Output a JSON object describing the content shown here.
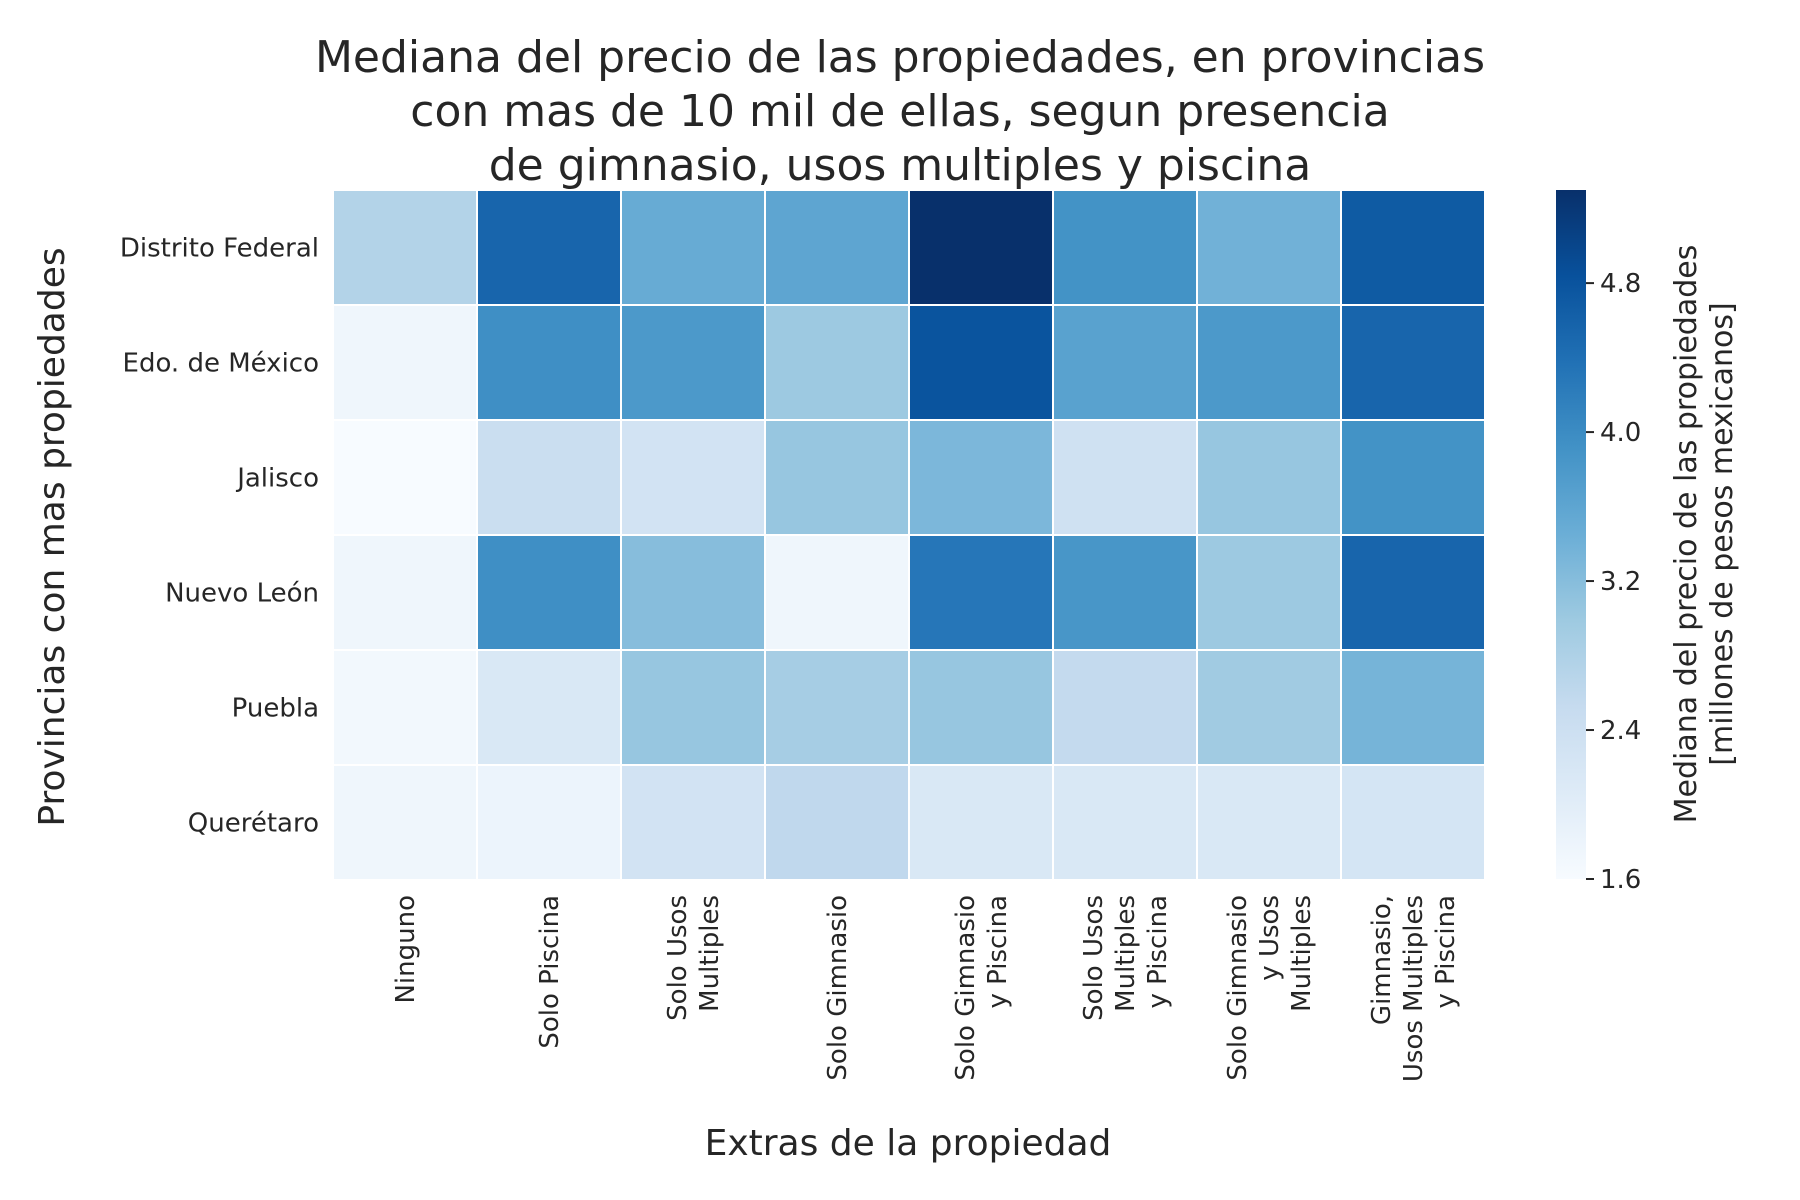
{
  "chart_data": {
    "type": "heatmap",
    "title_lines": [
      "Mediana del precio de las propiedades, en provincias",
      "con mas de 10 mil de ellas, segun presencia",
      "de gimnasio, usos multiples y piscina"
    ],
    "xlabel": "Extras de la propiedad",
    "ylabel": "Provincias con mas propiedades",
    "colorbar_label_lines": [
      "Mediana del precio de las propiedades",
      "[millones de pesos mexicanos]"
    ],
    "colormap": "Blues",
    "colormap_colors": [
      "#f7fbff",
      "#deebf7",
      "#c6dbef",
      "#9ecae1",
      "#6baed6",
      "#4292c6",
      "#2171b5",
      "#08519c",
      "#08306b"
    ],
    "vmin": 1.6,
    "vmax": 5.3,
    "colorbar_ticks": [
      "1.6",
      "2.4",
      "3.2",
      "4.0",
      "4.8"
    ],
    "x_categories": [
      [
        "Ninguno"
      ],
      [
        "Solo Piscina"
      ],
      [
        "Solo Usos",
        "Multiples"
      ],
      [
        "Solo Gimnasio"
      ],
      [
        "Solo Gimnasio",
        "y Piscina"
      ],
      [
        "Solo Usos",
        "Multiples",
        "y Piscina"
      ],
      [
        "Solo Gimnasio",
        "y Usos",
        "Multiples"
      ],
      [
        "Gimnasio,",
        "Usos Multiples",
        "y Piscina"
      ]
    ],
    "y_categories": [
      "Distrito Federal",
      "Edo. de México",
      "Jalisco",
      "Nuevo León",
      "Puebla",
      "Querétaro"
    ],
    "values": [
      [
        2.75,
        4.55,
        3.5,
        3.6,
        5.3,
        3.9,
        3.4,
        4.7
      ],
      [
        1.75,
        3.95,
        3.8,
        3.0,
        4.8,
        3.65,
        3.8,
        4.55
      ],
      [
        1.6,
        2.45,
        2.3,
        3.05,
        3.3,
        2.35,
        3.05,
        3.9
      ],
      [
        1.75,
        3.95,
        3.2,
        1.75,
        4.3,
        3.85,
        3.0,
        4.55
      ],
      [
        1.7,
        2.15,
        3.05,
        2.9,
        3.05,
        2.55,
        2.95,
        3.35
      ],
      [
        1.75,
        1.8,
        2.3,
        2.6,
        2.15,
        2.15,
        2.15,
        2.25
      ]
    ]
  }
}
